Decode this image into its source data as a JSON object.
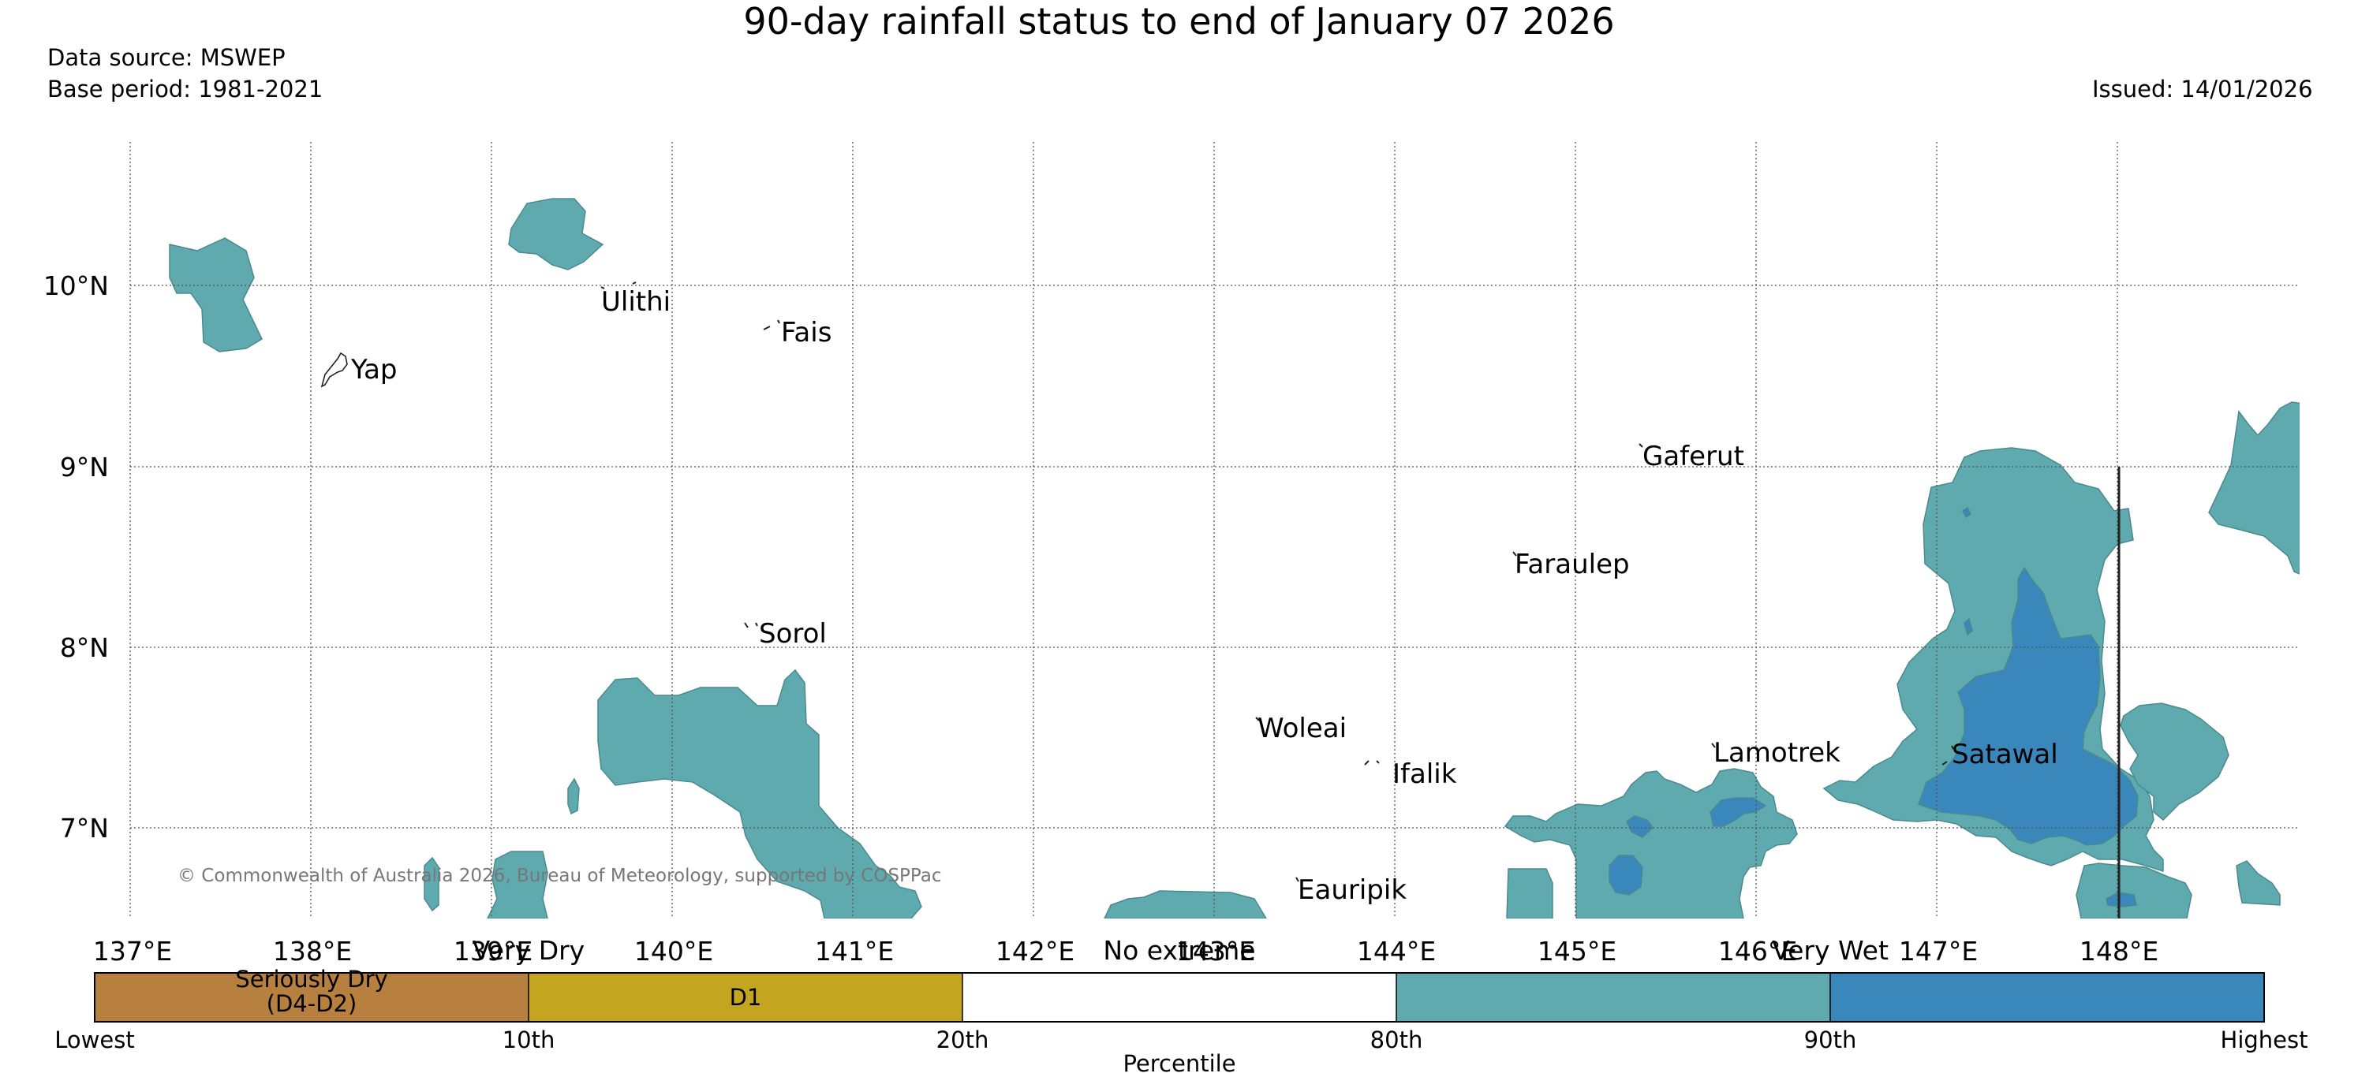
{
  "title": "90-day rainfall status to end of January 07 2026",
  "data_source": "Data source: MSWEP",
  "base_period": "Base period: 1981-2021",
  "issued": "Issued: 14/01/2026",
  "copyright": "© Commonwealth of Australia 2026, Bureau of Meteorology, supported by COSPPac",
  "colors": {
    "seriously_dry": "#b8803f",
    "d1": "#c4a520",
    "no_extreme": "#ffffff",
    "wet": "#5eaaaf",
    "very_wet": "#3a87bb"
  },
  "lat_labels": [
    "10°N",
    "9°N",
    "8°N",
    "7°N"
  ],
  "lon_labels": [
    "137°E",
    "138°E",
    "139°E",
    "140°E",
    "141°E",
    "142°E",
    "143°E",
    "144°E",
    "145°E",
    "146°E",
    "147°E",
    "148°E"
  ],
  "islands": {
    "yap": "Yap",
    "ulithi": "Ulithi",
    "fais": "Fais",
    "gaferut": "Gaferut",
    "faraulep": "Faraulep",
    "sorol": "Sorol",
    "woleai": "Woleai",
    "ifalik": "Ifalik",
    "lamotrek": "Lamotrek",
    "satawal": "Satawal",
    "eauripik": "Eauripik"
  },
  "legend": {
    "categories": {
      "very_dry": "Very Dry",
      "no_extreme": "No extreme",
      "very_wet": "Very Wet"
    },
    "segments": {
      "seriously_dry_line1": "Seriously Dry",
      "seriously_dry_line2": "(D4-D2)",
      "d1": "D1"
    },
    "ticks": {
      "lowest": "Lowest",
      "p10": "10th",
      "p20": "20th",
      "p80": "80th",
      "p90": "90th",
      "highest": "Highest"
    },
    "axis_title": "Percentile"
  }
}
